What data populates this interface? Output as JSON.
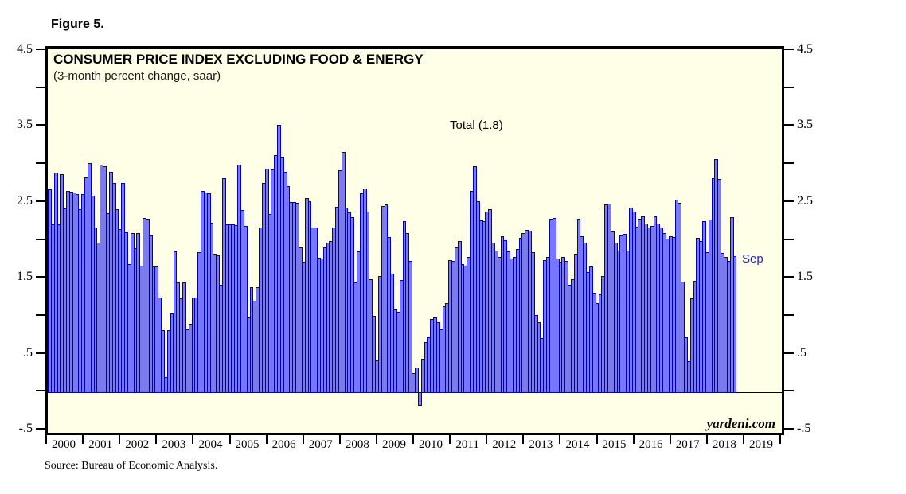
{
  "figure_label": "Figure 5.",
  "header": {
    "title": "CONSUMER PRICE INDEX EXCLUDING FOOD & ENERGY",
    "subtitle": "(3-month percent change, saar)"
  },
  "annotations": {
    "series_label": "Total (1.8)",
    "latest_point_label": "Sep",
    "watermark": "yardeni.com"
  },
  "source_note": "Source: Bureau of Economic Analysis.",
  "colors": {
    "plot_background": "#fffee6",
    "bar_fill": "#7b7bee",
    "bar_border": "#0000b4",
    "frame": "#000000",
    "sep_label_blue": "#2323cc"
  },
  "chart_data": {
    "type": "bar",
    "title": "CONSUMER PRICE INDEX EXCLUDING FOOD & ENERGY",
    "subtitle": "(3-month percent change, saar)",
    "xlabel": "",
    "ylabel": "3-month percent change, saar",
    "ylim": [
      -0.5,
      4.5
    ],
    "yticks_major": [
      4.5,
      3.5,
      2.5,
      1.5,
      0.5,
      -0.5
    ],
    "ytick_labels": [
      "4.5",
      "3.5",
      "2.5",
      "1.5",
      ".5",
      "-.5"
    ],
    "yticks_minor": [
      4.0,
      3.0,
      2.0,
      1.0,
      0.0
    ],
    "grid": false,
    "legend_position": "inside-top-center",
    "x_axis_years": [
      2000,
      2001,
      2002,
      2003,
      2004,
      2005,
      2006,
      2007,
      2008,
      2009,
      2010,
      2011,
      2012,
      2013,
      2014,
      2015,
      2016,
      2017,
      2018,
      2019
    ],
    "x_axis_span_months": 240,
    "frequency": "monthly",
    "start": "2000-01",
    "end": "2018-09",
    "series": [
      {
        "name": "Total",
        "latest_value": 1.8,
        "latest_month": "Sep",
        "values": [
          2.68,
          2.22,
          2.9,
          2.21,
          2.88,
          2.42,
          2.65,
          2.64,
          2.63,
          2.61,
          2.41,
          2.61,
          2.83,
          3.02,
          2.59,
          2.17,
          1.97,
          3.0,
          2.98,
          2.36,
          2.91,
          2.76,
          2.41,
          2.15,
          2.76,
          2.11,
          1.69,
          2.1,
          1.9,
          2.1,
          1.67,
          2.3,
          2.29,
          2.07,
          1.66,
          1.66,
          1.25,
          0.82,
          0.2,
          0.82,
          1.04,
          1.86,
          1.45,
          1.24,
          1.45,
          0.83,
          0.9,
          1.25,
          1.25,
          1.85,
          2.65,
          2.63,
          2.62,
          2.24,
          1.83,
          1.81,
          1.42,
          2.82,
          2.22,
          2.22,
          2.21,
          2.2,
          3.0,
          2.4,
          2.19,
          0.99,
          1.39,
          1.21,
          1.39,
          2.17,
          2.76,
          2.95,
          2.35,
          2.94,
          3.13,
          3.52,
          3.11,
          2.91,
          2.72,
          2.51,
          2.51,
          2.5,
          1.91,
          1.72,
          2.56,
          2.52,
          2.17,
          2.17,
          1.77,
          1.76,
          1.91,
          1.97,
          2.0,
          2.17,
          2.45,
          2.93,
          3.17,
          2.43,
          2.37,
          2.31,
          1.45,
          1.86,
          2.62,
          2.69,
          2.38,
          1.49,
          1.01,
          0.42,
          1.53,
          2.46,
          2.48,
          2.05,
          1.56,
          1.09,
          1.06,
          1.48,
          2.26,
          2.1,
          1.73,
          0.25,
          0.33,
          -0.18,
          0.44,
          0.66,
          0.73,
          0.97,
          0.99,
          0.93,
          0.83,
          1.14,
          1.18,
          1.74,
          1.73,
          1.91,
          2.0,
          1.69,
          1.67,
          1.79,
          2.65,
          2.98,
          2.52,
          2.27,
          2.26,
          2.38,
          2.41,
          1.97,
          1.87,
          1.79,
          2.06,
          2.01,
          1.86,
          1.76,
          1.78,
          1.89,
          2.04,
          2.1,
          2.14,
          2.13,
          1.85,
          1.02,
          0.93,
          0.72,
          1.74,
          1.78,
          2.29,
          2.3,
          1.76,
          1.72,
          1.78,
          1.73,
          1.42,
          1.49,
          1.83,
          2.29,
          2.06,
          1.97,
          1.59,
          1.66,
          1.31,
          1.18,
          1.29,
          1.53,
          2.48,
          2.49,
          2.12,
          1.97,
          1.87,
          2.07,
          2.09,
          1.87,
          2.44,
          2.38,
          2.18,
          2.29,
          2.32,
          2.23,
          2.17,
          2.19,
          2.32,
          2.23,
          2.17,
          2.1,
          2.03,
          2.06,
          2.05,
          2.54,
          2.5,
          1.46,
          0.73,
          0.41,
          1.24,
          1.47,
          2.04,
          2.0,
          2.26,
          1.85,
          2.28,
          2.82,
          3.07,
          2.81,
          1.84,
          1.78,
          1.73,
          2.31,
          1.8
        ]
      }
    ]
  }
}
